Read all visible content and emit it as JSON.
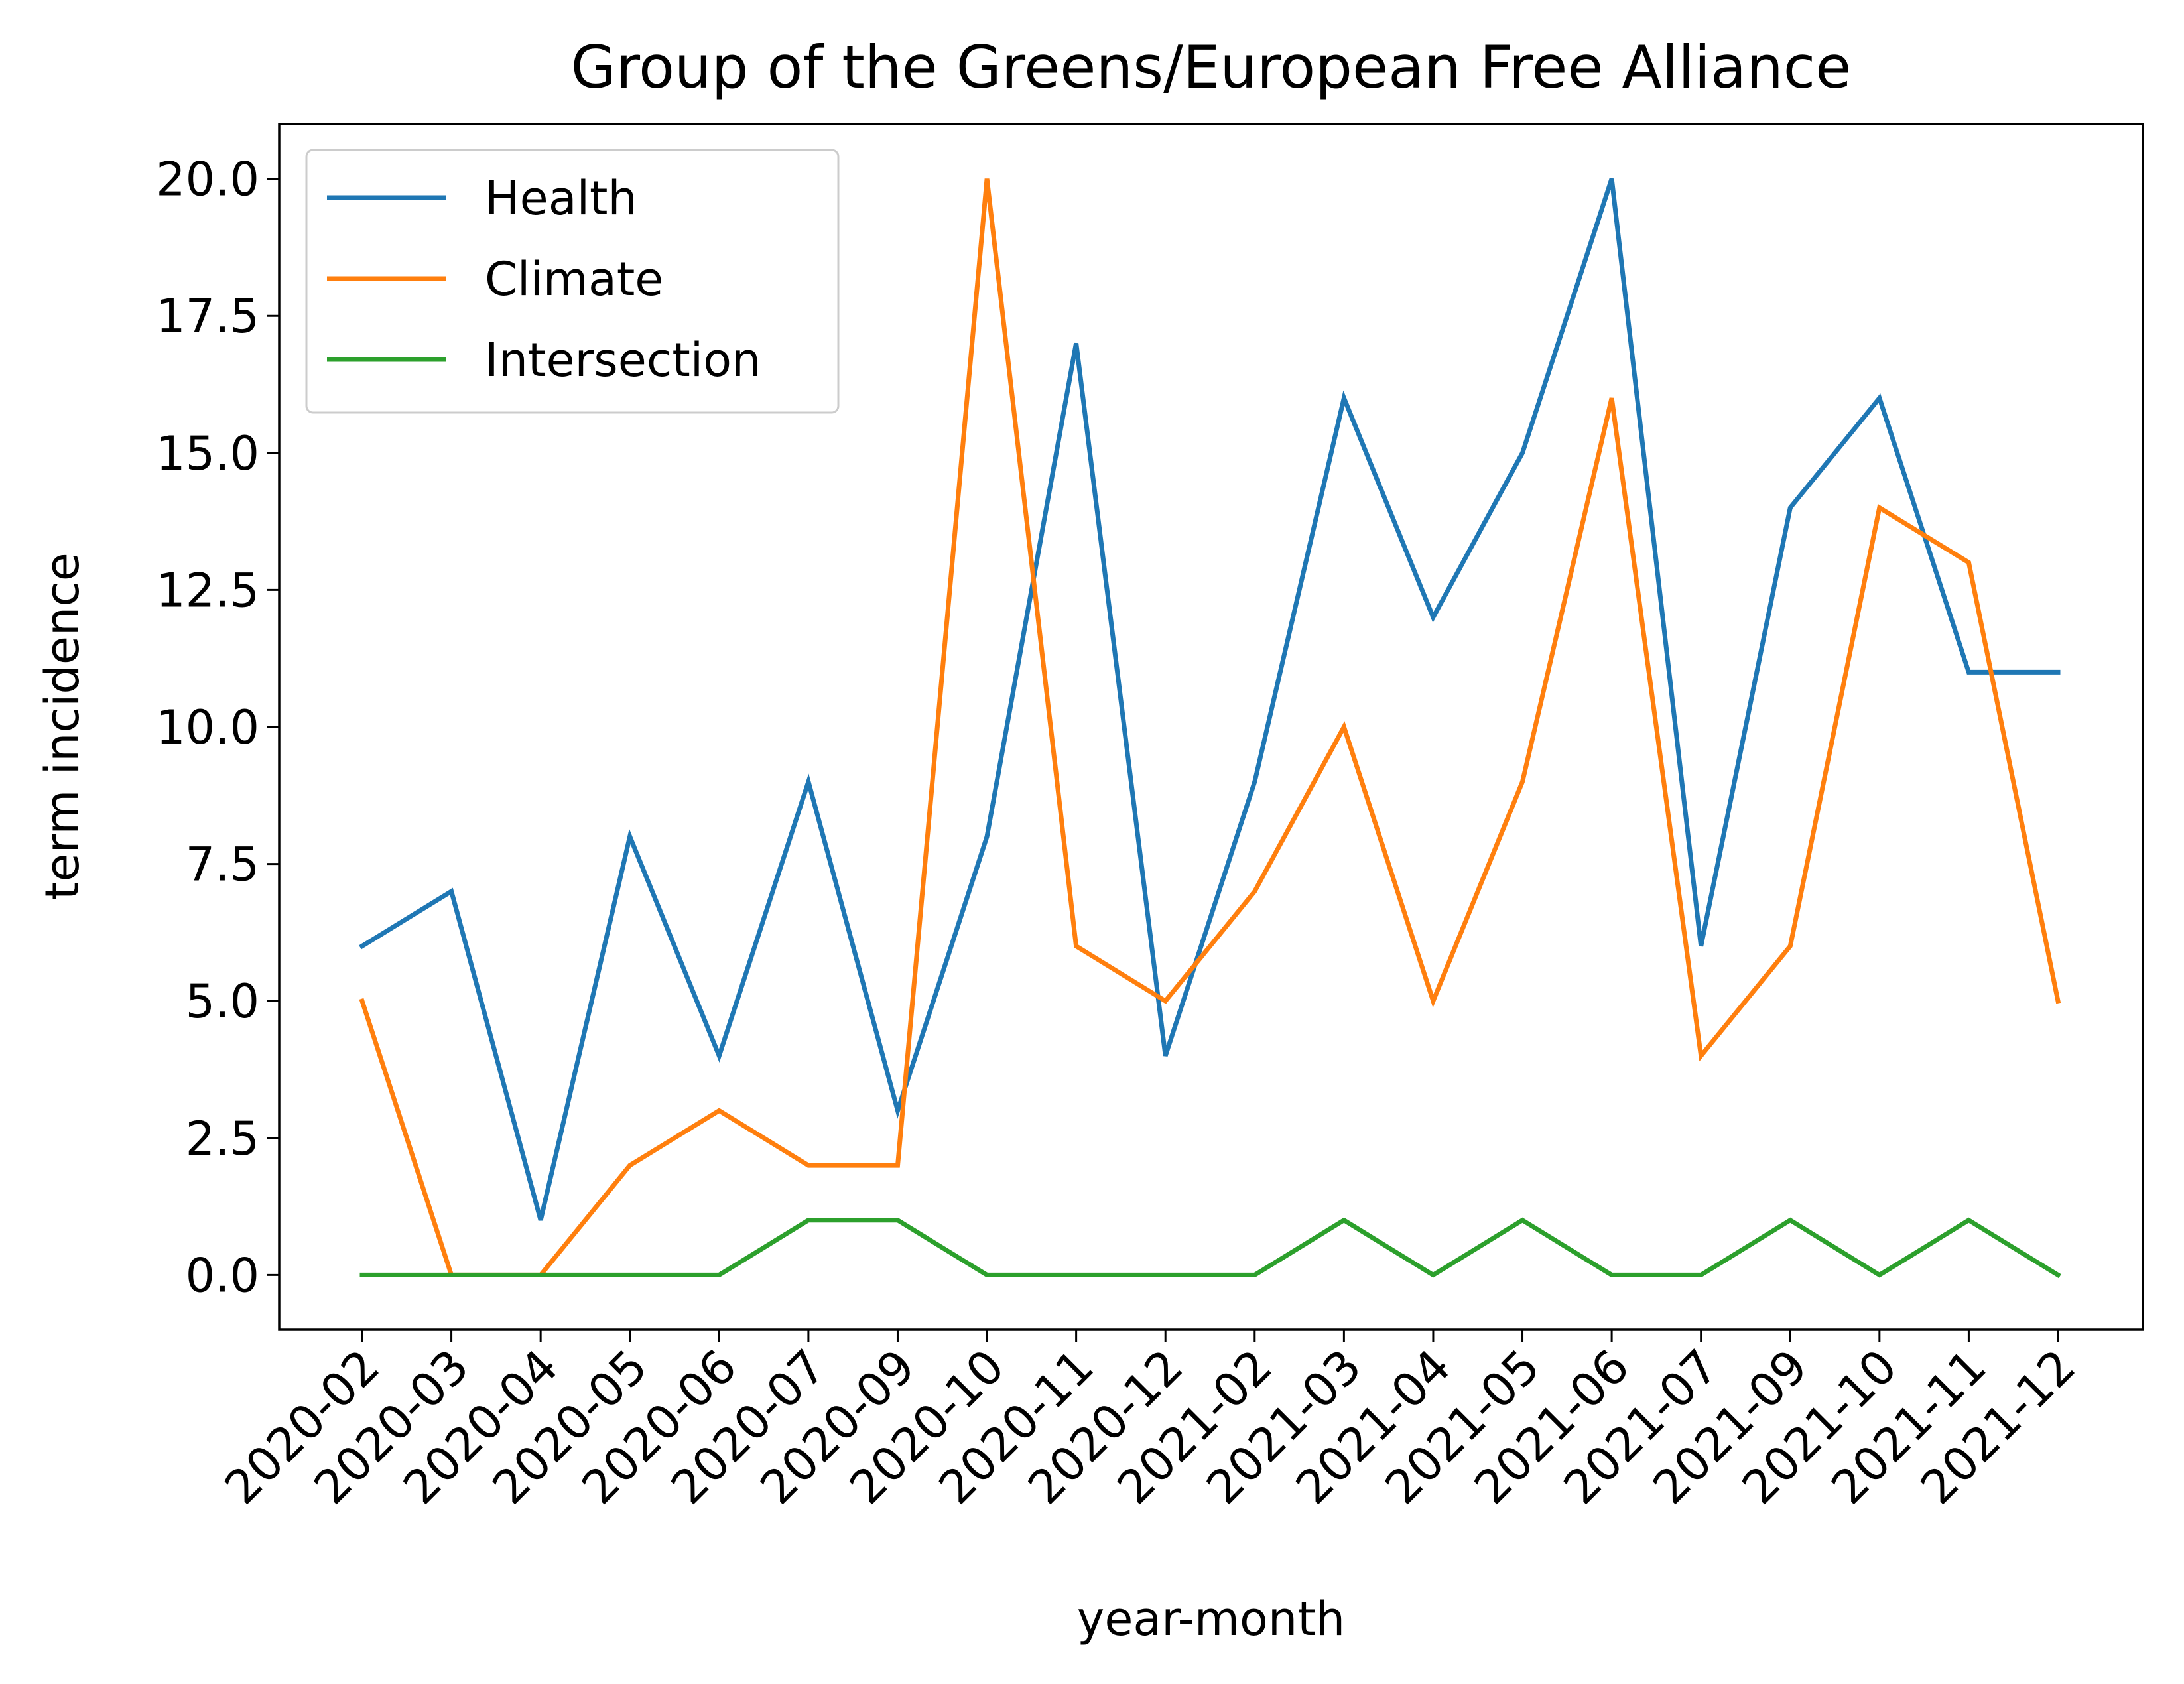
{
  "chart_data": {
    "type": "line",
    "title": "Group of the Greens/European Free Alliance",
    "xlabel": "year-month",
    "ylabel": "term incidence",
    "categories": [
      "2020-02",
      "2020-03",
      "2020-04",
      "2020-05",
      "2020-06",
      "2020-07",
      "2020-09",
      "2020-10",
      "2020-11",
      "2020-12",
      "2021-02",
      "2021-03",
      "2021-04",
      "2021-05",
      "2021-06",
      "2021-07",
      "2021-09",
      "2021-10",
      "2021-11",
      "2021-12"
    ],
    "ylim": [
      -1,
      21
    ],
    "yticks": [
      0,
      2.5,
      5,
      7.5,
      10,
      12.5,
      15,
      17.5,
      20
    ],
    "ytick_labels": [
      "0.0",
      "2.5",
      "5.0",
      "7.5",
      "10.0",
      "12.5",
      "15.0",
      "17.5",
      "20.0"
    ],
    "grid": false,
    "legend_position": "top-left",
    "series": [
      {
        "name": "Health",
        "color": "#1f77b4",
        "values": [
          6,
          7,
          1,
          8,
          4,
          9,
          3,
          8,
          17,
          4,
          9,
          16,
          12,
          15,
          20,
          6,
          14,
          16,
          11,
          11
        ]
      },
      {
        "name": "Climate",
        "color": "#ff7f0e",
        "values": [
          5,
          0,
          0,
          2,
          3,
          2,
          2,
          20,
          6,
          5,
          7,
          10,
          5,
          9,
          16,
          4,
          6,
          14,
          13,
          5
        ]
      },
      {
        "name": "Intersection",
        "color": "#2ca02c",
        "values": [
          0,
          0,
          0,
          0,
          0,
          1,
          1,
          0,
          0,
          0,
          0,
          1,
          0,
          1,
          0,
          0,
          1,
          0,
          1,
          0
        ]
      }
    ]
  }
}
